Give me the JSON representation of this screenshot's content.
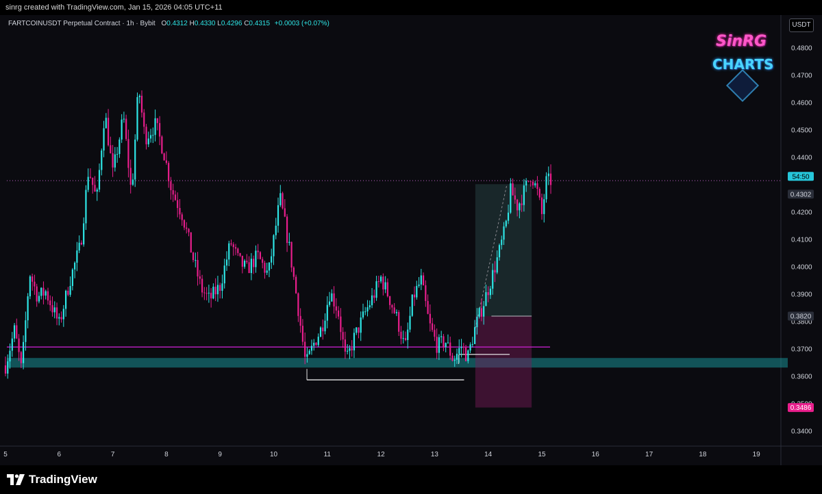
{
  "header": {
    "created_text": "sinrg created with TradingView.com, Jan 15, 2026 04:05 UTC+11"
  },
  "legend": {
    "symbol": "FARTCOINUSDT Perpetual Contract · 1h · Bybit",
    "o_label": "O",
    "o_value": "0.4312",
    "h_label": "H",
    "h_value": "0.4330",
    "l_label": "L",
    "l_value": "0.4296",
    "c_label": "C",
    "c_value": "0.4315",
    "change": "+0.0003 (+0.07%)"
  },
  "currency": "USDT",
  "logo": {
    "line1": "SinRG",
    "line2": "CHARTS"
  },
  "footer": {
    "brand": "TradingView"
  },
  "colors": {
    "up": "#2ee6e6",
    "down": "#e91e8c",
    "background": "#0b0b10",
    "zone": "#1a9ea0",
    "purple_line": "#c21fc8"
  },
  "chart_data": {
    "type": "candlestick",
    "x_tick_labels": [
      "5",
      "6",
      "7",
      "8",
      "9",
      "10",
      "11",
      "12",
      "13",
      "14",
      "15",
      "16",
      "17",
      "18",
      "19"
    ],
    "x_range_days": [
      5,
      19.5
    ],
    "y_range": [
      0.335,
      0.4845
    ],
    "y_tick_labels": [
      "0.4800",
      "0.4700",
      "0.4600",
      "0.4500",
      "0.4400",
      "0.4200",
      "0.4100",
      "0.4000",
      "0.3900",
      "0.3800",
      "0.3700",
      "0.3600",
      "0.3500",
      "0.3400"
    ],
    "price_badges": [
      {
        "label": "54:50",
        "value": 0.4318,
        "color": "#26c6da",
        "text_color": "#000000"
      },
      {
        "label": "0.4302",
        "value": 0.4288,
        "color": "#2a2e39",
        "text_color": "#d1d4dc"
      },
      {
        "label": "0.3820",
        "value": 0.382,
        "color": "#2a2e39",
        "text_color": "#d1d4dc"
      },
      {
        "label": "0.3486",
        "value": 0.3486,
        "color": "#e91e8c",
        "text_color": "#ffffff"
      }
    ],
    "current_price": 0.4315,
    "support_zone": [
      0.3632,
      0.3667
    ],
    "horizontal_level": 0.3707,
    "swing_low_level": {
      "value": 0.3587,
      "from_day": 10.62,
      "to_day": 12.2
    },
    "small_level": {
      "value": 0.368,
      "from_day": 13.45,
      "to_day": 13.95
    },
    "position": {
      "from_day": 13.76,
      "to_day": 14.4,
      "entry": 0.382,
      "target": 0.4302,
      "stop": 0.3486
    },
    "path_points": [
      {
        "day": 5.0,
        "price": 0.364
      },
      {
        "day": 5.17,
        "price": 0.377
      },
      {
        "day": 5.3,
        "price": 0.362
      },
      {
        "day": 5.45,
        "price": 0.398
      },
      {
        "day": 5.6,
        "price": 0.389
      },
      {
        "day": 5.75,
        "price": 0.391
      },
      {
        "day": 6.0,
        "price": 0.379
      },
      {
        "day": 6.2,
        "price": 0.395
      },
      {
        "day": 6.4,
        "price": 0.408
      },
      {
        "day": 6.55,
        "price": 0.436
      },
      {
        "day": 6.7,
        "price": 0.424
      },
      {
        "day": 6.85,
        "price": 0.457
      },
      {
        "day": 7.0,
        "price": 0.434
      },
      {
        "day": 7.2,
        "price": 0.455
      },
      {
        "day": 7.35,
        "price": 0.426
      },
      {
        "day": 7.48,
        "price": 0.466
      },
      {
        "day": 7.6,
        "price": 0.447
      },
      {
        "day": 7.8,
        "price": 0.452
      },
      {
        "day": 7.95,
        "price": 0.442
      },
      {
        "day": 8.1,
        "price": 0.428
      },
      {
        "day": 8.3,
        "price": 0.419
      },
      {
        "day": 8.5,
        "price": 0.403
      },
      {
        "day": 8.65,
        "price": 0.392
      },
      {
        "day": 8.8,
        "price": 0.388
      },
      {
        "day": 9.0,
        "price": 0.393
      },
      {
        "day": 9.2,
        "price": 0.409
      },
      {
        "day": 9.35,
        "price": 0.402
      },
      {
        "day": 9.5,
        "price": 0.399
      },
      {
        "day": 9.7,
        "price": 0.404
      },
      {
        "day": 9.9,
        "price": 0.397
      },
      {
        "day": 10.12,
        "price": 0.425
      },
      {
        "day": 10.3,
        "price": 0.406
      },
      {
        "day": 10.45,
        "price": 0.386
      },
      {
        "day": 10.6,
        "price": 0.364
      },
      {
        "day": 10.75,
        "price": 0.372
      },
      {
        "day": 10.9,
        "price": 0.378
      },
      {
        "day": 11.05,
        "price": 0.391
      },
      {
        "day": 11.2,
        "price": 0.384
      },
      {
        "day": 11.35,
        "price": 0.365
      },
      {
        "day": 11.5,
        "price": 0.374
      },
      {
        "day": 11.7,
        "price": 0.383
      },
      {
        "day": 11.85,
        "price": 0.389
      },
      {
        "day": 12.0,
        "price": 0.396
      },
      {
        "day": 12.15,
        "price": 0.389
      },
      {
        "day": 12.3,
        "price": 0.381
      },
      {
        "day": 12.45,
        "price": 0.37
      },
      {
        "day": 12.6,
        "price": 0.389
      },
      {
        "day": 12.75,
        "price": 0.395
      },
      {
        "day": 12.9,
        "price": 0.379
      },
      {
        "day": 13.05,
        "price": 0.371
      },
      {
        "day": 13.2,
        "price": 0.373
      },
      {
        "day": 13.35,
        "price": 0.366
      },
      {
        "day": 13.5,
        "price": 0.371
      },
      {
        "day": 13.62,
        "price": 0.367
      },
      {
        "day": 13.76,
        "price": 0.378
      },
      {
        "day": 13.9,
        "price": 0.386
      },
      {
        "day": 14.05,
        "price": 0.395
      },
      {
        "day": 14.2,
        "price": 0.405
      },
      {
        "day": 14.32,
        "price": 0.414
      },
      {
        "day": 14.42,
        "price": 0.428
      },
      {
        "day": 14.55,
        "price": 0.422
      },
      {
        "day": 14.68,
        "price": 0.428
      },
      {
        "day": 14.8,
        "price": 0.434
      },
      {
        "day": 14.92,
        "price": 0.427
      },
      {
        "day": 15.0,
        "price": 0.419
      },
      {
        "day": 15.08,
        "price": 0.431
      },
      {
        "day": 15.17,
        "price": 0.4315
      }
    ]
  }
}
